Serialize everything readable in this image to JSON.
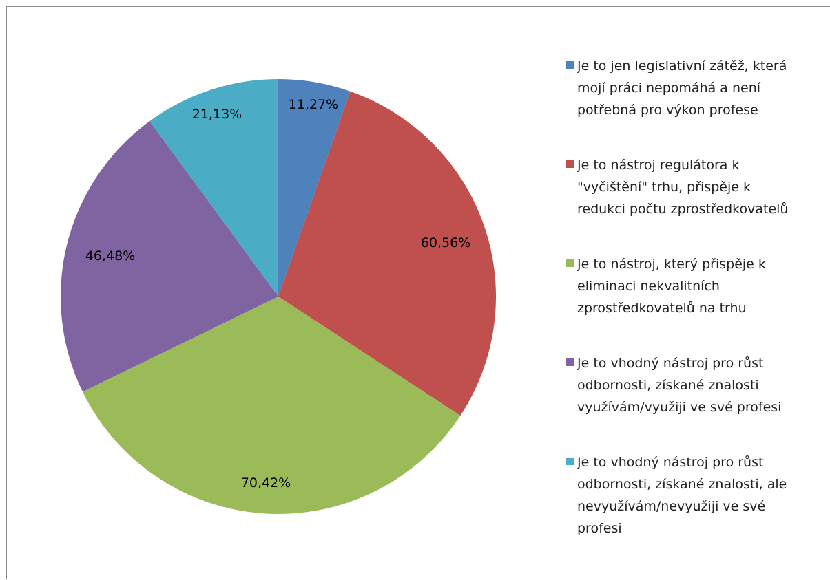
{
  "chart_data": {
    "type": "pie",
    "slices": [
      {
        "label": "Je to jen legislativní zátěž, která mojí práci nepomáhá a není potřebná pro výkon profese",
        "value_label": "11,27%",
        "value": 11.27,
        "color": "#4f81bd"
      },
      {
        "label": "Je to nástroj regulátora k \"vyčištění\" trhu, přispěje k redukci počtu zprostředkovatelů",
        "value_label": "60,56%",
        "value": 60.56,
        "color": "#c0504d"
      },
      {
        "label": "Je to nástroj, který přispěje k eliminaci nekvalitních zprostředkovatelů na trhu",
        "value_label": "70,42%",
        "value": 70.42,
        "color": "#9bbb59"
      },
      {
        "label": "Je to vhodný nástroj pro růst odbornosti, získané znalosti využívám/využiji ve své profesi",
        "value_label": "46,48%",
        "value": 46.48,
        "color": "#8064a2"
      },
      {
        "label": "Je to vhodný nástroj pro růst odbornosti, získané znalosti, ale nevyužívám/nevyužiji ve své profesi",
        "value_label": "21,13%",
        "value": 21.13,
        "color": "#4bacc6"
      }
    ],
    "legend_position": "right",
    "legend": {
      "lines": [
        [
          "Je to jen legislativní zátěž, která",
          "mojí práci nepomáhá a není",
          "potřebná pro výkon profese"
        ],
        [
          "Je to nástroj regulátora k",
          "\"vyčištění\" trhu, přispěje k",
          "redukci počtu zprostředkovatelů"
        ],
        [
          "Je to nástroj, který přispěje k",
          "eliminaci nekvalitních",
          "zprostředkovatelů na trhu"
        ],
        [
          "Je to vhodný nástroj pro růst",
          "odbornosti, získané znalosti",
          "využívám/využiji ve své profesi"
        ],
        [
          "Je to vhodný nástroj pro růst",
          "odbornosti, získané znalosti, ale",
          "nevyužívám/nevyužiji ve své",
          "profesi"
        ]
      ]
    }
  }
}
